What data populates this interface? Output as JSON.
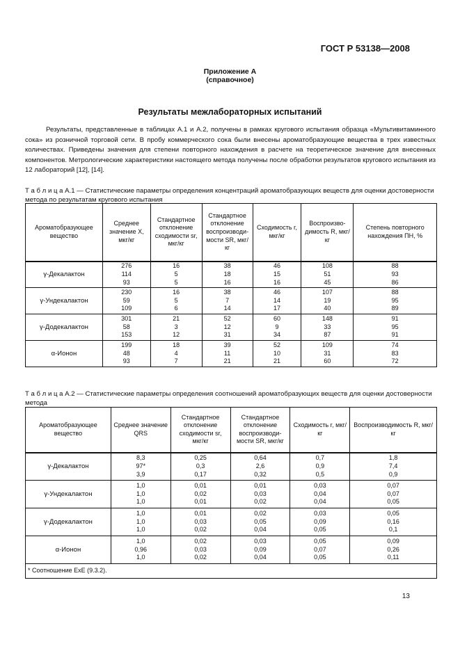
{
  "header": {
    "standard": "ГОСТ Р 53138—2008"
  },
  "appendix": {
    "title": "Приложение А\n(справочное)"
  },
  "section_title": "Результаты межлабораторных испытаний",
  "paragraph": "Результаты, представленные в таблицах А.1 и А.2, получены в рамках кругового испытания образца «Мульти­витаминного сока» из розничной торговой сети. В пробу коммерческого сока были внесены ароматобразующие ве­щества в трех известных количествах. Приведены значения для степени повторного нахождения в расчете на теоретическое значение для внесенных компонентов. Метрологические характеристики настоящего метода полу­чены после обработки результатов кругового испытания из 12 лабораторий [12], [14].",
  "table1": {
    "caption": "Т а б л и ц а   А.1 — Статистические параметры определения концентраций ароматобразующих веществ для оценки достоверности метода по результатам кругового испытания",
    "headers": [
      "Ароматобразующее вещество",
      "Среднее значение X, мкг/кг",
      "Стандартное отклонение сходимости sr, мкг/кг",
      "Стандартное отклонение воспроизводи­мости SR, мкг/кг",
      "Сходимость r, мкг/кг",
      "Воспроизво­димость R, мкг/кг",
      "Степень повторного нахождения ПН, %"
    ],
    "rows": [
      [
        "γ-Декалактон",
        "276\n114\n93",
        "16\n5\n5",
        "38\n18\n16",
        "46\n15\n16",
        "108\n51\n45",
        "88\n93\n86"
      ],
      [
        "γ-Ундекалактон",
        "230\n59\n109",
        "16\n5\n6",
        "38\n7\n14",
        "46\n14\n17",
        "107\n19\n40",
        "88\n95\n89"
      ],
      [
        "γ-Додекалактон",
        "301\n58\n153",
        "21\n3\n12",
        "52\n12\n31",
        "60\n9\n34",
        "148\n33\n87",
        "91\n95\n91"
      ],
      [
        "α-Ионон",
        "199\n48\n93",
        "18\n4\n7",
        "39\n11\n21",
        "52\n10\n21",
        "109\n31\n60",
        "74\n83\n72"
      ]
    ]
  },
  "table2": {
    "caption": "Т а б л и ц а   А.2 — Статистические параметры определения соотношений ароматобразующих веществ для оценки достоверности метода",
    "headers": [
      "Ароматобразующее вещество",
      "Среднее значение QRS",
      "Стандартное отклонение сходимости sr, мкг/кг",
      "Стандартное отклонение воспроизводи­мости SR, мкг/кг",
      "Сходимость r, мкг/кг",
      "Воспроизво­димость R, мкг/кг"
    ],
    "rows": [
      [
        "γ-Декалактон",
        "8,3\n97*\n3,9",
        "0,25\n0,3\n0,17",
        "0,64\n2,6\n0,32",
        "0,7\n0,9\n0,5",
        "1,8\n7,4\n0,9"
      ],
      [
        "γ-Ундекалактон",
        "1,0\n1,0\n1,0",
        "0,01\n0,02\n0,01",
        "0,01\n0,03\n0,02",
        "0,03\n0,04\n0,04",
        "0,07\n0,07\n0,05"
      ],
      [
        "γ-Додекалактон",
        "1,0\n1,0\n1,0",
        "0,01\n0,03\n0,02",
        "0,02\n0,05\n0,04",
        "0,03\n0,09\n0,05",
        "0,05\n0,16\n0,1"
      ],
      [
        "α-Ионон",
        "1,0\n0,96\n1,0",
        "0,02\n0,03\n0,02",
        "0,03\n0,09\n0,04",
        "0,05\n0,07\n0,05",
        "0,09\n0,26\n0,11"
      ]
    ],
    "footnote": "* Соотношение ExE (9.3.2)."
  },
  "page_number": "13"
}
